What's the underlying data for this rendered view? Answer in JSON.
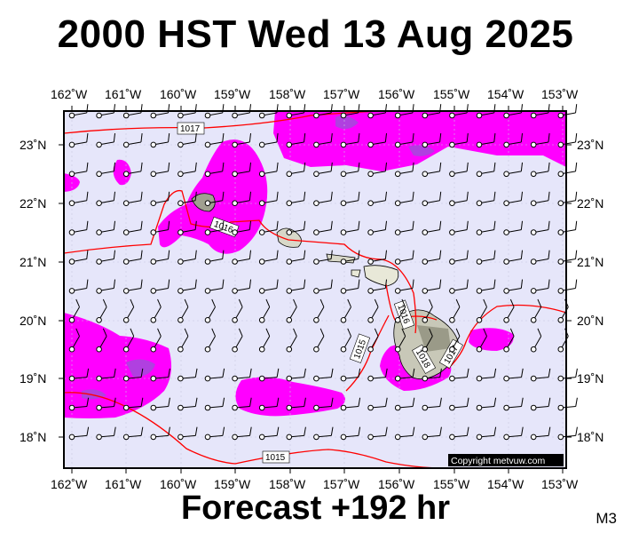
{
  "title": "2000 HST Wed 13 Aug 2025",
  "footer": "Forecast +192 hr",
  "model_tag": "M3",
  "copyright": "Copyright metvuw.com",
  "lon_labels": [
    "162˚W",
    "161˚W",
    "160˚W",
    "159˚W",
    "158˚W",
    "157˚W",
    "156˚W",
    "155˚W",
    "154˚W",
    "153˚W"
  ],
  "lat_labels": [
    "23˚N",
    "22˚N",
    "21˚N",
    "20˚N",
    "19˚N",
    "18˚N"
  ],
  "isobar_labels": [
    "1017",
    "1016",
    "1015",
    "1016",
    "1015",
    "1017",
    "1018"
  ],
  "colors": {
    "background": "#e6e6fa",
    "precip_light": "#ff00ff",
    "precip_heavy": "#b040e0",
    "isobar": "#ff0000",
    "land": "#e8e8d8",
    "terrain": "#a0a090"
  }
}
